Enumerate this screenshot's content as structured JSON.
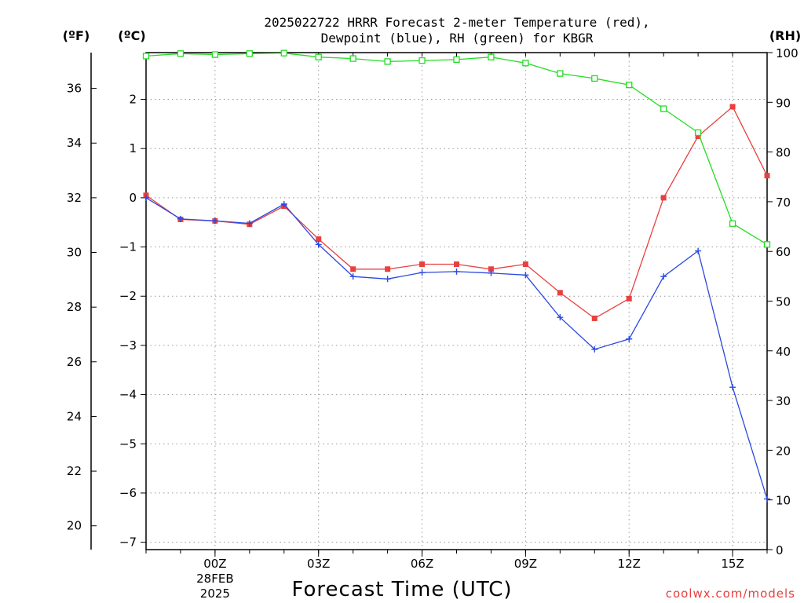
{
  "chart_data": {
    "type": "line",
    "title_line1": "2025022722 HRRR Forecast 2-meter Temperature (red),",
    "title_line2": "Dewpoint (blue), RH (green) for KBGR",
    "xlabel": "Forecast Time (UTC)",
    "credit": "coolwx.com/models",
    "units": {
      "fahrenheit": "(ºF)",
      "celsius": "(ºC)",
      "rh": "(RH)"
    },
    "x_hours": [
      22,
      23,
      24,
      25,
      26,
      27,
      28,
      29,
      30,
      31,
      32,
      33,
      34,
      35,
      36,
      37,
      38,
      39,
      40
    ],
    "xlim": [
      22,
      40
    ],
    "x_ticks": [
      {
        "hour": 24,
        "label": "00Z",
        "sub1": "28FEB",
        "sub2": "2025"
      },
      {
        "hour": 27,
        "label": "03Z"
      },
      {
        "hour": 30,
        "label": "06Z"
      },
      {
        "hour": 33,
        "label": "09Z"
      },
      {
        "hour": 36,
        "label": "12Z"
      },
      {
        "hour": 39,
        "label": "15Z"
      }
    ],
    "celsius_axis": {
      "lim": [
        -7.15,
        2.95
      ],
      "ticks": [
        2,
        1,
        0,
        -1,
        -2,
        -3,
        -4,
        -5,
        -6,
        -7
      ],
      "tick_labels": [
        "2",
        "1",
        "0",
        "−1",
        "−2",
        "−3",
        "−4",
        "−5",
        "−6",
        "−7"
      ]
    },
    "fahrenheit_axis": {
      "ticks": [
        36,
        34,
        32,
        30,
        28,
        26,
        24,
        22,
        20
      ]
    },
    "rh_axis": {
      "lim": [
        0,
        100
      ],
      "ticks": [
        100,
        90,
        80,
        70,
        60,
        50,
        40,
        30,
        20,
        10,
        0
      ]
    },
    "series": [
      {
        "name": "Temperature",
        "color": "#e8403f",
        "marker": "filled-square",
        "axis": "celsius",
        "values": [
          0.05,
          -0.44,
          -0.47,
          -0.54,
          -0.17,
          -0.84,
          -1.45,
          -1.45,
          -1.35,
          -1.35,
          -1.45,
          -1.35,
          -1.93,
          -2.45,
          -2.05,
          0,
          1.25,
          1.85,
          0.45
        ]
      },
      {
        "name": "Dewpoint",
        "color": "#2b49e0",
        "marker": "plus",
        "axis": "celsius",
        "values": [
          0,
          -0.43,
          -0.47,
          -0.52,
          -0.13,
          -0.95,
          -1.6,
          -1.65,
          -1.52,
          -1.5,
          -1.53,
          -1.57,
          -2.43,
          -3.08,
          -2.87,
          -1.6,
          -1.08,
          -3.85,
          -6.12
        ]
      },
      {
        "name": "RH",
        "color": "#22dd22",
        "marker": "open-square",
        "axis": "rh",
        "values": [
          99.3,
          99.8,
          99.6,
          99.8,
          99.9,
          99.1,
          98.8,
          98.2,
          98.4,
          98.6,
          99.1,
          97.9,
          95.8,
          94.8,
          93.5,
          88.7,
          83.9,
          65.6,
          61.4
        ]
      }
    ]
  }
}
